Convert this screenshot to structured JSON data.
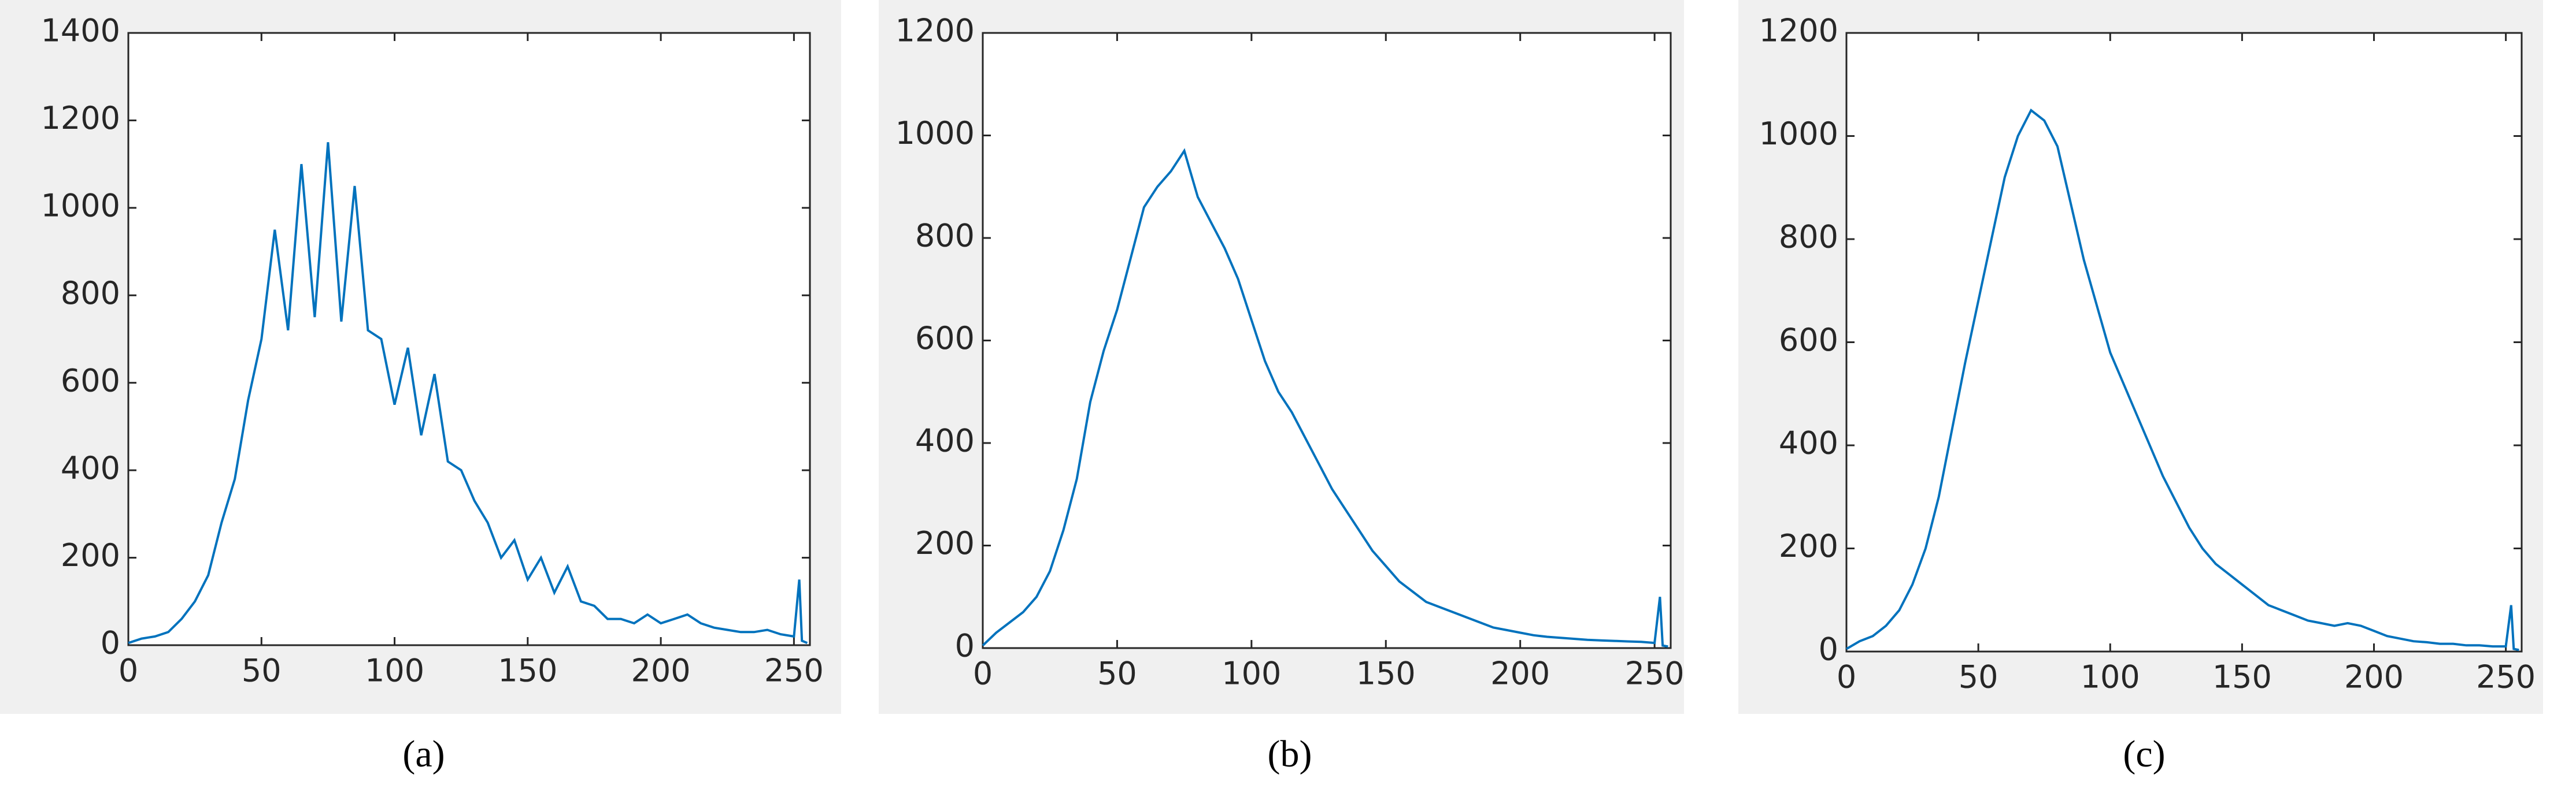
{
  "chart_data": [
    {
      "type": "line",
      "caption": "(a)",
      "color": "#0072bd",
      "x": [
        0,
        5,
        10,
        15,
        20,
        25,
        30,
        35,
        40,
        45,
        50,
        55,
        60,
        65,
        70,
        75,
        80,
        85,
        90,
        95,
        100,
        105,
        110,
        115,
        120,
        125,
        130,
        135,
        140,
        145,
        150,
        155,
        160,
        165,
        170,
        175,
        180,
        185,
        190,
        195,
        200,
        205,
        210,
        215,
        220,
        225,
        230,
        235,
        240,
        245,
        250,
        252,
        253,
        255
      ],
      "values": [
        5,
        15,
        20,
        30,
        60,
        100,
        160,
        280,
        380,
        560,
        700,
        950,
        720,
        1100,
        750,
        1150,
        740,
        1050,
        720,
        700,
        550,
        680,
        480,
        620,
        420,
        400,
        330,
        280,
        200,
        240,
        150,
        200,
        120,
        180,
        100,
        90,
        60,
        60,
        50,
        70,
        50,
        60,
        70,
        50,
        40,
        35,
        30,
        30,
        35,
        25,
        20,
        150,
        10,
        5
      ],
      "xlim": [
        0,
        256
      ],
      "ylim": [
        0,
        1400
      ],
      "xticks": [
        0,
        50,
        100,
        150,
        200,
        250
      ],
      "yticks": [
        0,
        200,
        400,
        600,
        800,
        1000,
        1200,
        1400
      ]
    },
    {
      "type": "line",
      "caption": "(b)",
      "color": "#0072bd",
      "x": [
        0,
        5,
        10,
        15,
        20,
        25,
        30,
        35,
        40,
        45,
        50,
        55,
        60,
        65,
        70,
        75,
        80,
        85,
        90,
        95,
        100,
        105,
        110,
        115,
        120,
        125,
        130,
        135,
        140,
        145,
        150,
        155,
        160,
        165,
        170,
        175,
        180,
        185,
        190,
        195,
        200,
        205,
        210,
        215,
        220,
        225,
        230,
        235,
        240,
        245,
        250,
        252,
        253,
        255
      ],
      "values": [
        5,
        30,
        50,
        70,
        100,
        150,
        230,
        330,
        480,
        580,
        660,
        760,
        860,
        900,
        930,
        970,
        880,
        830,
        780,
        720,
        640,
        560,
        500,
        460,
        410,
        360,
        310,
        270,
        230,
        190,
        160,
        130,
        110,
        90,
        80,
        70,
        60,
        50,
        40,
        35,
        30,
        25,
        22,
        20,
        18,
        16,
        15,
        14,
        13,
        12,
        10,
        100,
        5,
        3
      ],
      "xlim": [
        0,
        256
      ],
      "ylim": [
        0,
        1200
      ],
      "xticks": [
        0,
        50,
        100,
        150,
        200,
        250
      ],
      "yticks": [
        0,
        200,
        400,
        600,
        800,
        1000,
        1200
      ]
    },
    {
      "type": "line",
      "caption": "(c)",
      "color": "#0072bd",
      "x": [
        0,
        5,
        10,
        15,
        20,
        25,
        30,
        35,
        40,
        45,
        50,
        55,
        60,
        65,
        70,
        75,
        80,
        85,
        90,
        95,
        100,
        105,
        110,
        115,
        120,
        125,
        130,
        135,
        140,
        145,
        150,
        155,
        160,
        165,
        170,
        175,
        180,
        185,
        190,
        195,
        200,
        205,
        210,
        215,
        220,
        225,
        230,
        235,
        240,
        245,
        250,
        252,
        253,
        255
      ],
      "values": [
        5,
        20,
        30,
        50,
        80,
        130,
        200,
        300,
        430,
        560,
        680,
        800,
        920,
        1000,
        1050,
        1030,
        980,
        870,
        760,
        670,
        580,
        520,
        460,
        400,
        340,
        290,
        240,
        200,
        170,
        150,
        130,
        110,
        90,
        80,
        70,
        60,
        55,
        50,
        55,
        50,
        40,
        30,
        25,
        20,
        18,
        15,
        15,
        12,
        12,
        10,
        10,
        90,
        5,
        3
      ],
      "xlim": [
        0,
        256
      ],
      "ylim": [
        0,
        1200
      ],
      "xticks": [
        0,
        50,
        100,
        150,
        200,
        250
      ],
      "yticks": [
        0,
        200,
        400,
        600,
        800,
        1000,
        1200
      ]
    }
  ]
}
